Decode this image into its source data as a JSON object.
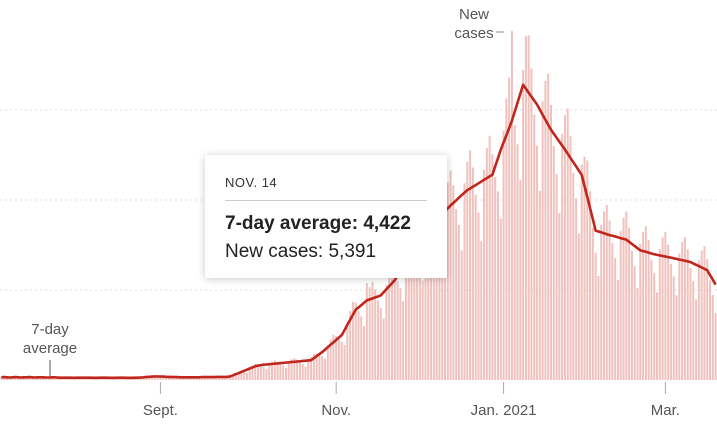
{
  "chart_data": {
    "type": "bar-line",
    "categories": [
      null,
      null,
      null,
      null,
      null,
      null,
      null,
      null,
      null,
      null,
      null,
      null,
      null,
      null,
      null,
      null,
      null,
      null,
      null,
      null,
      null,
      null,
      null,
      null,
      null,
      null,
      null,
      null,
      null,
      null,
      null,
      null,
      null,
      null,
      null,
      null,
      null,
      null,
      null,
      null,
      null,
      null,
      null,
      null,
      null,
      null,
      null,
      null,
      null,
      null,
      null,
      null,
      null,
      null,
      null,
      null,
      null,
      "Sept.",
      null,
      null,
      null,
      null,
      null,
      null,
      null,
      null,
      null,
      null,
      null,
      null,
      null,
      null,
      null,
      null,
      null,
      null,
      null,
      null,
      null,
      null,
      null,
      null,
      null,
      null,
      null,
      null,
      null,
      null,
      null,
      null,
      null,
      null,
      null,
      null,
      null,
      null,
      null,
      null,
      null,
      null,
      null,
      null,
      null,
      null,
      null,
      null,
      null,
      null,
      null,
      null,
      null,
      null,
      null,
      null,
      null,
      null,
      null,
      null,
      null,
      null,
      "Nov.",
      null,
      null,
      null,
      null,
      null,
      null,
      null,
      null,
      null,
      null,
      null,
      null,
      null,
      null,
      null,
      null,
      null,
      null,
      null,
      null,
      null,
      null,
      null,
      null,
      null,
      null,
      null,
      null,
      null,
      null,
      null,
      null,
      null,
      null,
      null,
      null,
      null,
      null,
      null,
      null,
      null,
      null,
      null,
      null,
      null,
      null,
      null,
      null,
      null,
      null,
      null,
      null,
      null,
      null,
      null,
      null,
      null,
      null,
      null,
      "Jan. 2021",
      null,
      null,
      null,
      null,
      null,
      null,
      null,
      null,
      null,
      null,
      null,
      null,
      null,
      null,
      null,
      null,
      null,
      null,
      null,
      null,
      null,
      null,
      null,
      null,
      null,
      null,
      null,
      null,
      null,
      null,
      null,
      null,
      null,
      null,
      null,
      null,
      null,
      null,
      null,
      null,
      null,
      null,
      null,
      null,
      null,
      null,
      null,
      null,
      null,
      null,
      null,
      null,
      null,
      null,
      null,
      null,
      null,
      "Mar.",
      null,
      null,
      null,
      null,
      null,
      null,
      null,
      null,
      null,
      null,
      null,
      null,
      null,
      null,
      null,
      null,
      null,
      null
    ],
    "series": [
      {
        "name": "New cases",
        "color": "#f0c2be",
        "values": [
          180,
          180,
          140,
          120,
          110,
          170,
          170,
          170,
          170,
          140,
          140,
          110,
          150,
          170,
          180,
          170,
          130,
          120,
          110,
          160,
          160,
          160,
          140,
          120,
          110,
          90,
          130,
          150,
          160,
          140,
          120,
          110,
          90,
          130,
          140,
          160,
          140,
          120,
          110,
          80,
          130,
          140,
          160,
          140,
          120,
          100,
          80,
          130,
          150,
          160,
          150,
          140,
          140,
          130,
          200,
          230,
          240,
          210,
          180,
          150,
          120,
          180,
          180,
          190,
          170,
          140,
          130,
          110,
          160,
          170,
          180,
          170,
          150,
          140,
          110,
          170,
          180,
          200,
          190,
          160,
          140,
          130,
          210,
          300,
          380,
          420,
          430,
          430,
          400,
          670,
          810,
          910,
          880,
          790,
          720,
          600,
          920,
          1020,
          1090,
          1010,
          890,
          810,
          680,
          1030,
          1150,
          1210,
          1130,
          990,
          900,
          750,
          1140,
          1270,
          1450,
          1460,
          1370,
          1320,
          1180,
          1910,
          2250,
          2510,
          2450,
          2240,
          2130,
          1950,
          3210,
          3840,
          4340,
          4290,
          3830,
          3540,
          3000,
          5391,
          5150,
          5440,
          5050,
          4410,
          4000,
          3410,
          5290,
          5990,
          6460,
          6110,
          5490,
          5120,
          4380,
          6800,
          7730,
          8340,
          7910,
          7050,
          6510,
          5520,
          8540,
          9610,
          10320,
          9640,
          8460,
          7710,
          6460,
          9860,
          10970,
          11640,
          10820,
          9480,
          8610,
          7190,
          10930,
          12130,
          12770,
          11810,
          10290,
          9290,
          7710,
          11680,
          12890,
          13570,
          12540,
          11280,
          10480,
          8960,
          13860,
          15640,
          16800,
          19400,
          14160,
          13090,
          11130,
          17220,
          19100,
          19150,
          17310,
          14740,
          13010,
          10510,
          15480,
          16630,
          17020,
          15290,
          13000,
          11440,
          9270,
          13670,
          14720,
          15080,
          13560,
          11500,
          10090,
          8140,
          11970,
          12400,
          12190,
          10490,
          8470,
          7060,
          5780,
          8610,
          9370,
          9720,
          8860,
          7610,
          6770,
          5550,
          8270,
          9020,
          9360,
          8450,
          7180,
          6320,
          5120,
          7560,
          8230,
          8540,
          7790,
          6680,
          5940,
          4870,
          7270,
          7920,
          8230,
          7510,
          6460,
          5750,
          4710,
          7020,
          7660,
          7940,
          7250,
          6220,
          5510,
          4480,
          6650,
          7190,
          7420,
          6710,
          5540,
          4730,
          3710
        ]
      },
      {
        "name": "7-day average",
        "color": "#c0261c",
        "values": [
          150,
          160,
          150,
          140,
          150,
          160,
          150,
          140,
          150,
          150,
          160,
          150,
          140,
          150,
          150,
          150,
          140,
          140,
          150,
          150,
          140,
          130,
          130,
          130,
          130,
          130,
          120,
          130,
          130,
          130,
          130,
          130,
          130,
          120,
          120,
          130,
          130,
          130,
          130,
          120,
          120,
          120,
          130,
          130,
          130,
          120,
          120,
          120,
          130,
          130,
          140,
          150,
          170,
          180,
          190,
          200,
          200,
          190,
          190,
          180,
          170,
          170,
          160,
          160,
          150,
          150,
          150,
          150,
          150,
          150,
          150,
          150,
          160,
          160,
          160,
          160,
          160,
          170,
          170,
          170,
          170,
          180,
          200,
          260,
          320,
          380,
          450,
          510,
          570,
          640,
          700,
          760,
          800,
          830,
          850,
          860,
          880,
          890,
          910,
          920,
          940,
          950,
          970,
          980,
          1000,
          1010,
          1030,
          1040,
          1060,
          1070,
          1090,
          1100,
          1210,
          1330,
          1440,
          1550,
          1690,
          1820,
          1960,
          2090,
          2230,
          2360,
          2500,
          2780,
          3060,
          3340,
          3620,
          3900,
          4030,
          4160,
          4290,
          4422,
          4480,
          4530,
          4590,
          4640,
          4700,
          4870,
          5040,
          5210,
          5380,
          5550,
          5780,
          6020,
          6250,
          6480,
          6720,
          6950,
          7190,
          7420,
          7660,
          7890,
          8130,
          8360,
          8600,
          8760,
          8910,
          9070,
          9230,
          9390,
          9540,
          9700,
          9840,
          9980,
          10130,
          10270,
          10410,
          10550,
          10640,
          10740,
          10830,
          10930,
          11020,
          11120,
          11210,
          11310,
          11400,
          11870,
          12330,
          12800,
          13200,
          13600,
          14000,
          14400,
          14900,
          15400,
          15900,
          16400,
          16180,
          15960,
          15740,
          15520,
          15300,
          15020,
          14740,
          14460,
          14180,
          13900,
          13680,
          13460,
          13240,
          13020,
          12800,
          12570,
          12330,
          12100,
          11870,
          11630,
          11400,
          10780,
          10160,
          9540,
          8920,
          8300,
          8250,
          8200,
          8150,
          8100,
          8050,
          8010,
          7970,
          7930,
          7880,
          7840,
          7800,
          7680,
          7560,
          7440,
          7320,
          7200,
          7160,
          7120,
          7080,
          7030,
          6990,
          6950,
          6920,
          6890,
          6860,
          6830,
          6800,
          6760,
          6730,
          6690,
          6660,
          6620,
          6590,
          6550,
          6480,
          6400,
          6330,
          6250,
          6180,
          6100,
          5830,
          5570,
          5300
        ]
      }
    ],
    "ylim": [
      0,
      20000
    ],
    "yticks": [
      5000,
      10000,
      15000
    ],
    "grid": true,
    "tooltip": {
      "date": "NOV. 14",
      "average_label": "7-day average:",
      "average_value": "4,422",
      "cases_label": "New cases:",
      "cases_value": "5,391"
    }
  }
}
